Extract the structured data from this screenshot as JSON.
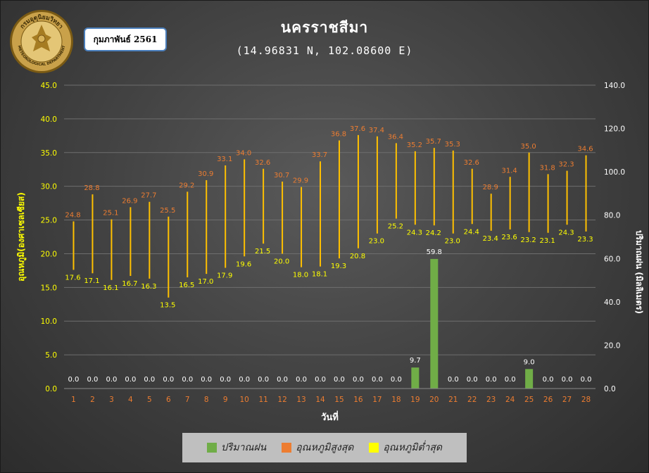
{
  "header": {
    "title": "นครราชสีมา",
    "coords": "(14.96831 N, 102.08600 E)",
    "month": "กุมภาพันธ์ 2561",
    "logo_text": "กรมอุตุนิยมวิทยา",
    "logo_text_en": "METEOROLOGICAL DEPARTMENT"
  },
  "colors": {
    "rain": "#70ad47",
    "tmax": "#ed7d31",
    "tmin": "#ffff00",
    "range_line": "#ffc000",
    "axis_label": "#ffff00",
    "x_tick": "#ed7d31",
    "max_label": "#ed7d31",
    "min_label": "#ffff00"
  },
  "chart_data": {
    "type": "bar",
    "xlabel": "วันที่",
    "ylabel_left": "อุณหภูมิ(องศาเซลเซียส)",
    "ylabel_right": "ปริมาณฝน (มิลลิเมตร)",
    "ylim_left": [
      0,
      45
    ],
    "ylim_right": [
      0,
      140
    ],
    "yticks_left": [
      "0.0",
      "5.0",
      "10.0",
      "15.0",
      "20.0",
      "25.0",
      "30.0",
      "35.0",
      "40.0",
      "45.0"
    ],
    "yticks_right": [
      "0.0",
      "20.0",
      "40.0",
      "60.0",
      "80.0",
      "100.0",
      "120.0",
      "140.0"
    ],
    "grid": true,
    "legend_position": "bottom",
    "categories": [
      "1",
      "2",
      "3",
      "4",
      "5",
      "6",
      "7",
      "8",
      "9",
      "10",
      "11",
      "12",
      "13",
      "14",
      "15",
      "16",
      "17",
      "18",
      "19",
      "20",
      "21",
      "22",
      "23",
      "24",
      "25",
      "26",
      "27",
      "28"
    ],
    "series": [
      {
        "name": "ปริมาณฝน",
        "axis": "right",
        "values": [
          0,
          0,
          0,
          0,
          0,
          0,
          0,
          0,
          0,
          0,
          0,
          0,
          0,
          0,
          0,
          0,
          0,
          0,
          9.7,
          59.8,
          0,
          0,
          0,
          0,
          9.0,
          0,
          0,
          0
        ],
        "labels": [
          "0.0",
          "0.0",
          "0.0",
          "0.0",
          "0.0",
          "0.0",
          "0.0",
          "0.0",
          "0.0",
          "0.0",
          "0.0",
          "0.0",
          "0.0",
          "0.0",
          "0.0",
          "0.0",
          "0.0",
          "0.0",
          "9.7",
          "59.8",
          "0.0",
          "0.0",
          "0.0",
          "0.0",
          "9.0",
          "0.0",
          "0.0",
          "0.0"
        ]
      },
      {
        "name": "อุณหภูมิสูงสุด",
        "axis": "left",
        "values": [
          24.8,
          28.8,
          25.1,
          26.9,
          27.7,
          25.5,
          29.2,
          30.9,
          33.1,
          34.0,
          32.6,
          30.7,
          29.9,
          33.7,
          36.8,
          37.6,
          37.4,
          36.4,
          35.2,
          35.7,
          35.3,
          32.6,
          28.9,
          31.4,
          35.0,
          31.8,
          32.3,
          34.6
        ],
        "labels": [
          "24.8",
          "28.8",
          "25.1",
          "26.9",
          "27.7",
          "25.5",
          "29.2",
          "30.9",
          "33.1",
          "34.0",
          "32.6",
          "30.7",
          "29.9",
          "33.7",
          "36.8",
          "37.6",
          "37.4",
          "36.4",
          "35.2",
          "35.7",
          "35.3",
          "32.6",
          "28.9",
          "31.4",
          "35.0",
          "31.8",
          "32.3",
          "34.6"
        ]
      },
      {
        "name": "อุณหภูมิต่ำสุด",
        "axis": "left",
        "values": [
          17.6,
          17.1,
          16.1,
          16.7,
          16.3,
          13.5,
          16.5,
          17.0,
          17.9,
          19.6,
          21.5,
          20.0,
          18.0,
          18.1,
          19.3,
          20.8,
          23.0,
          25.2,
          24.3,
          24.2,
          23.0,
          24.4,
          23.4,
          23.6,
          23.2,
          23.1,
          24.3,
          23.3
        ],
        "labels": [
          "17.6",
          "17.1",
          "16.1",
          "16.7",
          "16.3",
          "13.5",
          "16.5",
          "17.0",
          "17.9",
          "19.6",
          "21.5",
          "20.0",
          "18.0",
          "18.1",
          "19.3",
          "20.8",
          "23.0",
          "25.2",
          "24.3",
          "24.2",
          "23.0",
          "24.4",
          "23.4",
          "23.6",
          "23.2",
          "23.1",
          "24.3",
          "23.3"
        ]
      }
    ]
  },
  "legend": {
    "rain": "ปริมาณฝน",
    "tmax": "อุณหภูมิสูงสุด",
    "tmin": "อุณหภูมิต่ำสุด"
  }
}
